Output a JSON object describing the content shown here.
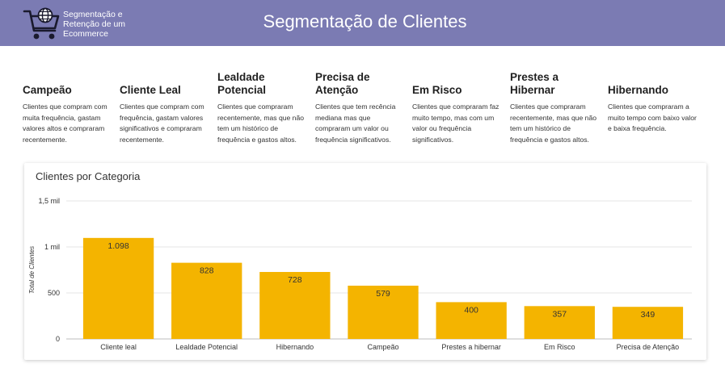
{
  "header": {
    "brand": "Segmentação e Retenção de um Ecommerce",
    "title": "Segmentação de Clientes",
    "logo_icon": "shopping-cart-globe-icon",
    "background": "#7b7bb3"
  },
  "segments": [
    {
      "title": "Campeão",
      "description": "Clientes que compram com muita frequência, gastam valores altos e compraram recentemente."
    },
    {
      "title": "Cliente Leal",
      "description": "Clientes que compram com frequência, gastam valores significativos e compraram recentemente."
    },
    {
      "title": "Lealdade Potencial",
      "description": "Clientes que compraram recentemente, mas que não tem um histórico de frequência e gastos altos."
    },
    {
      "title": "Precisa de Atenção",
      "description": "Clientes que tem recência mediana mas que compraram um valor ou frequência significativos."
    },
    {
      "title": "Em Risco",
      "description": "Clientes que compraram faz muito tempo, mas com um valor ou frequência significativos."
    },
    {
      "title": "Prestes a Hibernar",
      "description": "Clientes que compraram recentemente, mas que não tem um histórico de frequência e gastos altos."
    },
    {
      "title": "Hibernando",
      "description": "Clientes que compraram a muito tempo com baixo valor e baixa frequência."
    }
  ],
  "chart_data": {
    "type": "bar",
    "title": "Clientes por Categoria",
    "xlabel": "",
    "ylabel": "Total de Clientes",
    "categories": [
      "Cliente leal",
      "Lealdade Potencial",
      "Hibernando",
      "Campeão",
      "Prestes a hibernar",
      "Em Risco",
      "Precisa de Atenção"
    ],
    "values": [
      1098,
      828,
      728,
      579,
      400,
      357,
      349
    ],
    "value_labels": [
      "1.098",
      "828",
      "728",
      "579",
      "400",
      "357",
      "349"
    ],
    "ylim": [
      0,
      1500
    ],
    "yticks": [
      0,
      500,
      1000,
      1500
    ],
    "ytick_labels": [
      "0",
      "500",
      "1 mil",
      "1,5 mil"
    ],
    "grid": true,
    "bar_color": "#f4b400"
  }
}
